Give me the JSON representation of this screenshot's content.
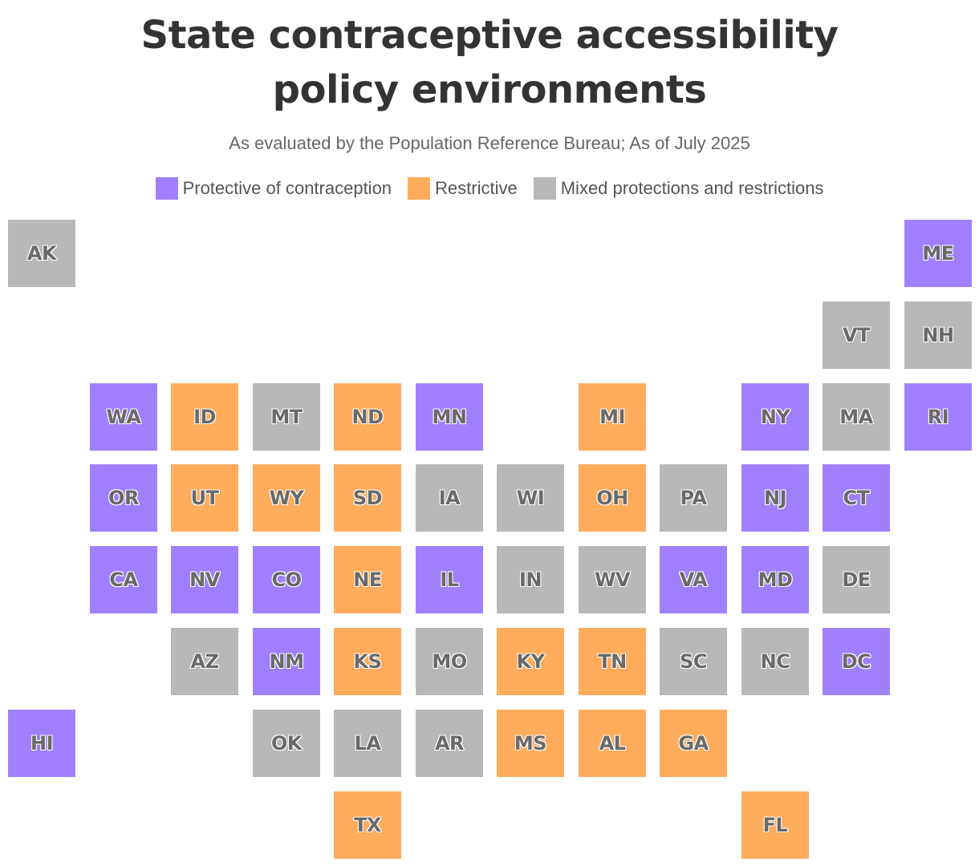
{
  "title": {
    "line1": "State contraceptive accessibility",
    "line2": "policy environments"
  },
  "subtitle": "As evaluated by the Population Reference Bureau; As of July 2025",
  "colors": {
    "protective": "#a080ff",
    "restrictive": "#ffac5c",
    "mixed": "#b8b8b8"
  },
  "legend": [
    {
      "key": "protective",
      "label": "Protective of contraception"
    },
    {
      "key": "restrictive",
      "label": "Restrictive"
    },
    {
      "key": "mixed",
      "label": "Mixed protections and restrictions"
    }
  ],
  "states": [
    {
      "abbr": "AK",
      "category": "mixed",
      "row": 0,
      "col": 0
    },
    {
      "abbr": "ME",
      "category": "protective",
      "row": 0,
      "col": 11
    },
    {
      "abbr": "VT",
      "category": "mixed",
      "row": 1,
      "col": 10
    },
    {
      "abbr": "NH",
      "category": "mixed",
      "row": 1,
      "col": 11
    },
    {
      "abbr": "WA",
      "category": "protective",
      "row": 2,
      "col": 1
    },
    {
      "abbr": "ID",
      "category": "restrictive",
      "row": 2,
      "col": 2
    },
    {
      "abbr": "MT",
      "category": "mixed",
      "row": 2,
      "col": 3
    },
    {
      "abbr": "ND",
      "category": "restrictive",
      "row": 2,
      "col": 4
    },
    {
      "abbr": "MN",
      "category": "protective",
      "row": 2,
      "col": 5
    },
    {
      "abbr": "MI",
      "category": "restrictive",
      "row": 2,
      "col": 7
    },
    {
      "abbr": "NY",
      "category": "protective",
      "row": 2,
      "col": 9
    },
    {
      "abbr": "MA",
      "category": "mixed",
      "row": 2,
      "col": 10
    },
    {
      "abbr": "RI",
      "category": "protective",
      "row": 2,
      "col": 11
    },
    {
      "abbr": "OR",
      "category": "protective",
      "row": 3,
      "col": 1
    },
    {
      "abbr": "UT",
      "category": "restrictive",
      "row": 3,
      "col": 2
    },
    {
      "abbr": "WY",
      "category": "restrictive",
      "row": 3,
      "col": 3
    },
    {
      "abbr": "SD",
      "category": "restrictive",
      "row": 3,
      "col": 4
    },
    {
      "abbr": "IA",
      "category": "mixed",
      "row": 3,
      "col": 5
    },
    {
      "abbr": "WI",
      "category": "mixed",
      "row": 3,
      "col": 6
    },
    {
      "abbr": "OH",
      "category": "restrictive",
      "row": 3,
      "col": 7
    },
    {
      "abbr": "PA",
      "category": "mixed",
      "row": 3,
      "col": 8
    },
    {
      "abbr": "NJ",
      "category": "protective",
      "row": 3,
      "col": 9
    },
    {
      "abbr": "CT",
      "category": "protective",
      "row": 3,
      "col": 10
    },
    {
      "abbr": "CA",
      "category": "protective",
      "row": 4,
      "col": 1
    },
    {
      "abbr": "NV",
      "category": "protective",
      "row": 4,
      "col": 2
    },
    {
      "abbr": "CO",
      "category": "protective",
      "row": 4,
      "col": 3
    },
    {
      "abbr": "NE",
      "category": "restrictive",
      "row": 4,
      "col": 4
    },
    {
      "abbr": "IL",
      "category": "protective",
      "row": 4,
      "col": 5
    },
    {
      "abbr": "IN",
      "category": "mixed",
      "row": 4,
      "col": 6
    },
    {
      "abbr": "WV",
      "category": "mixed",
      "row": 4,
      "col": 7
    },
    {
      "abbr": "VA",
      "category": "protective",
      "row": 4,
      "col": 8
    },
    {
      "abbr": "MD",
      "category": "protective",
      "row": 4,
      "col": 9
    },
    {
      "abbr": "DE",
      "category": "mixed",
      "row": 4,
      "col": 10
    },
    {
      "abbr": "AZ",
      "category": "mixed",
      "row": 5,
      "col": 2
    },
    {
      "abbr": "NM",
      "category": "protective",
      "row": 5,
      "col": 3
    },
    {
      "abbr": "KS",
      "category": "restrictive",
      "row": 5,
      "col": 4
    },
    {
      "abbr": "MO",
      "category": "mixed",
      "row": 5,
      "col": 5
    },
    {
      "abbr": "KY",
      "category": "restrictive",
      "row": 5,
      "col": 6
    },
    {
      "abbr": "TN",
      "category": "restrictive",
      "row": 5,
      "col": 7
    },
    {
      "abbr": "SC",
      "category": "mixed",
      "row": 5,
      "col": 8
    },
    {
      "abbr": "NC",
      "category": "mixed",
      "row": 5,
      "col": 9
    },
    {
      "abbr": "DC",
      "category": "protective",
      "row": 5,
      "col": 10
    },
    {
      "abbr": "HI",
      "category": "protective",
      "row": 6,
      "col": 0
    },
    {
      "abbr": "OK",
      "category": "mixed",
      "row": 6,
      "col": 3
    },
    {
      "abbr": "LA",
      "category": "mixed",
      "row": 6,
      "col": 4
    },
    {
      "abbr": "AR",
      "category": "mixed",
      "row": 6,
      "col": 5
    },
    {
      "abbr": "MS",
      "category": "restrictive",
      "row": 6,
      "col": 6
    },
    {
      "abbr": "AL",
      "category": "restrictive",
      "row": 6,
      "col": 7
    },
    {
      "abbr": "GA",
      "category": "restrictive",
      "row": 6,
      "col": 8
    },
    {
      "abbr": "TX",
      "category": "restrictive",
      "row": 7,
      "col": 4
    },
    {
      "abbr": "FL",
      "category": "restrictive",
      "row": 7,
      "col": 9
    }
  ]
}
